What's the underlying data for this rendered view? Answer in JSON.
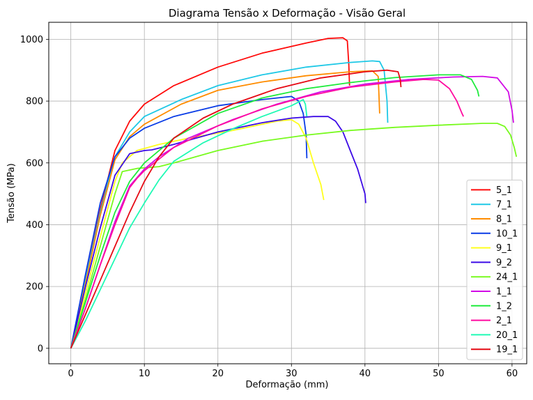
{
  "chart_data": {
    "type": "line",
    "title": "Diagrama Tensão x Deformação - Visão Geral",
    "xlabel": "Deformação (mm)",
    "ylabel": "Tensão (MPa)",
    "xlim": [
      -3,
      62
    ],
    "ylim": [
      -50,
      1055
    ],
    "xticks": [
      0,
      10,
      20,
      30,
      40,
      50,
      60
    ],
    "yticks": [
      0,
      200,
      400,
      600,
      800,
      1000
    ],
    "grid": true,
    "legend_position": "lower-right",
    "series": [
      {
        "name": "5_1",
        "color": "#ff0a0a",
        "points": [
          [
            0,
            0
          ],
          [
            2,
            220
          ],
          [
            4,
            450
          ],
          [
            6,
            640
          ],
          [
            8,
            735
          ],
          [
            10,
            790
          ],
          [
            14,
            850
          ],
          [
            20,
            910
          ],
          [
            26,
            955
          ],
          [
            32,
            988
          ],
          [
            35,
            1003
          ],
          [
            37,
            1005
          ],
          [
            37.6,
            995
          ],
          [
            37.8,
            920
          ],
          [
            37.9,
            850
          ]
        ]
      },
      {
        "name": "7_1",
        "color": "#1ec8e6",
        "points": [
          [
            0,
            0
          ],
          [
            2,
            220
          ],
          [
            4,
            440
          ],
          [
            6,
            620
          ],
          [
            8,
            700
          ],
          [
            10,
            750
          ],
          [
            15,
            805
          ],
          [
            20,
            850
          ],
          [
            26,
            885
          ],
          [
            32,
            910
          ],
          [
            38,
            925
          ],
          [
            41,
            930
          ],
          [
            42,
            928
          ],
          [
            42.6,
            900
          ],
          [
            43,
            800
          ],
          [
            43.1,
            730
          ]
        ]
      },
      {
        "name": "8_1",
        "color": "#ff8c00",
        "points": [
          [
            0,
            0
          ],
          [
            2,
            210
          ],
          [
            4,
            430
          ],
          [
            6,
            610
          ],
          [
            8,
            685
          ],
          [
            10,
            725
          ],
          [
            15,
            790
          ],
          [
            20,
            835
          ],
          [
            26,
            862
          ],
          [
            32,
            882
          ],
          [
            38,
            895
          ],
          [
            41,
            898
          ],
          [
            41.8,
            880
          ],
          [
            41.9,
            820
          ],
          [
            42,
            760
          ]
        ]
      },
      {
        "name": "10_1",
        "color": "#0a3ce6",
        "points": [
          [
            0,
            0
          ],
          [
            2,
            240
          ],
          [
            4,
            470
          ],
          [
            6,
            620
          ],
          [
            8,
            680
          ],
          [
            10,
            712
          ],
          [
            14,
            750
          ],
          [
            20,
            785
          ],
          [
            26,
            805
          ],
          [
            30,
            815
          ],
          [
            31,
            800
          ],
          [
            31.6,
            760
          ],
          [
            32,
            690
          ],
          [
            32.1,
            615
          ]
        ]
      },
      {
        "name": "9_1",
        "color": "#ffff1e",
        "points": [
          [
            0,
            0
          ],
          [
            2,
            180
          ],
          [
            4,
            360
          ],
          [
            6,
            540
          ],
          [
            7,
            600
          ],
          [
            9,
            640
          ],
          [
            12,
            660
          ],
          [
            16,
            680
          ],
          [
            22,
            705
          ],
          [
            28,
            735
          ],
          [
            30,
            740
          ],
          [
            31,
            725
          ],
          [
            32,
            680
          ],
          [
            33,
            600
          ],
          [
            34,
            530
          ],
          [
            34.4,
            480
          ]
        ]
      },
      {
        "name": "9_2",
        "color": "#3c0ae6",
        "points": [
          [
            0,
            0
          ],
          [
            2,
            200
          ],
          [
            4,
            390
          ],
          [
            6,
            560
          ],
          [
            8,
            630
          ],
          [
            10,
            640
          ],
          [
            11,
            642
          ],
          [
            14,
            660
          ],
          [
            20,
            700
          ],
          [
            26,
            730
          ],
          [
            30,
            745
          ],
          [
            33,
            750
          ],
          [
            35,
            750
          ],
          [
            36,
            735
          ],
          [
            37,
            700
          ],
          [
            38,
            640
          ],
          [
            39,
            580
          ],
          [
            40,
            500
          ],
          [
            40.1,
            470
          ]
        ]
      },
      {
        "name": "24_1",
        "color": "#78fa1e",
        "points": [
          [
            0,
            0
          ],
          [
            2,
            160
          ],
          [
            4,
            330
          ],
          [
            6,
            500
          ],
          [
            7,
            572
          ],
          [
            9,
            582
          ],
          [
            12,
            588
          ],
          [
            14,
            600
          ],
          [
            20,
            640
          ],
          [
            26,
            670
          ],
          [
            32,
            690
          ],
          [
            38,
            705
          ],
          [
            44,
            715
          ],
          [
            50,
            722
          ],
          [
            56,
            728
          ],
          [
            58,
            728
          ],
          [
            59,
            718
          ],
          [
            59.8,
            690
          ],
          [
            60.3,
            650
          ],
          [
            60.6,
            620
          ]
        ]
      },
      {
        "name": "1_1",
        "color": "#d20ae6",
        "points": [
          [
            0,
            0
          ],
          [
            2,
            130
          ],
          [
            4,
            270
          ],
          [
            6,
            410
          ],
          [
            8,
            525
          ],
          [
            10,
            580
          ],
          [
            12,
            620
          ],
          [
            16,
            680
          ],
          [
            22,
            740
          ],
          [
            28,
            790
          ],
          [
            34,
            830
          ],
          [
            40,
            855
          ],
          [
            46,
            870
          ],
          [
            52,
            878
          ],
          [
            56,
            880
          ],
          [
            58,
            875
          ],
          [
            59.5,
            830
          ],
          [
            60,
            770
          ],
          [
            60.2,
            730
          ]
        ]
      },
      {
        "name": "1_2",
        "color": "#1eeb3c",
        "points": [
          [
            0,
            0
          ],
          [
            2,
            150
          ],
          [
            4,
            300
          ],
          [
            6,
            440
          ],
          [
            8,
            540
          ],
          [
            10,
            600
          ],
          [
            14,
            680
          ],
          [
            20,
            760
          ],
          [
            26,
            810
          ],
          [
            32,
            840
          ],
          [
            38,
            860
          ],
          [
            44,
            876
          ],
          [
            50,
            885
          ],
          [
            53,
            885
          ],
          [
            54.5,
            870
          ],
          [
            55.3,
            835
          ],
          [
            55.5,
            815
          ]
        ]
      },
      {
        "name": "2_1",
        "color": "#ff0aa0",
        "points": [
          [
            0,
            0
          ],
          [
            2,
            130
          ],
          [
            4,
            270
          ],
          [
            6,
            400
          ],
          [
            8,
            520
          ],
          [
            9,
            550
          ],
          [
            10,
            575
          ],
          [
            14,
            650
          ],
          [
            20,
            720
          ],
          [
            26,
            775
          ],
          [
            32,
            815
          ],
          [
            38,
            845
          ],
          [
            44,
            862
          ],
          [
            48,
            870
          ],
          [
            50,
            868
          ],
          [
            51.5,
            840
          ],
          [
            52.5,
            800
          ],
          [
            53.2,
            760
          ],
          [
            53.4,
            750
          ]
        ]
      },
      {
        "name": "20_1",
        "color": "#1efab4",
        "points": [
          [
            0,
            0
          ],
          [
            2,
            90
          ],
          [
            4,
            190
          ],
          [
            6,
            290
          ],
          [
            8,
            390
          ],
          [
            10,
            470
          ],
          [
            12,
            545
          ],
          [
            14,
            605
          ],
          [
            18,
            665
          ],
          [
            22,
            710
          ],
          [
            26,
            750
          ],
          [
            30,
            785
          ],
          [
            31.6,
            805
          ],
          [
            31.9,
            790
          ],
          [
            32.1,
            750
          ]
        ]
      },
      {
        "name": "19_1",
        "color": "#e60a14",
        "points": [
          [
            0,
            0
          ],
          [
            2,
            110
          ],
          [
            4,
            220
          ],
          [
            6,
            330
          ],
          [
            8,
            440
          ],
          [
            10,
            540
          ],
          [
            12,
            620
          ],
          [
            14,
            680
          ],
          [
            18,
            745
          ],
          [
            22,
            790
          ],
          [
            28,
            840
          ],
          [
            34,
            875
          ],
          [
            40,
            895
          ],
          [
            43,
            900
          ],
          [
            44.5,
            895
          ],
          [
            44.8,
            870
          ],
          [
            44.9,
            845
          ]
        ]
      }
    ]
  }
}
